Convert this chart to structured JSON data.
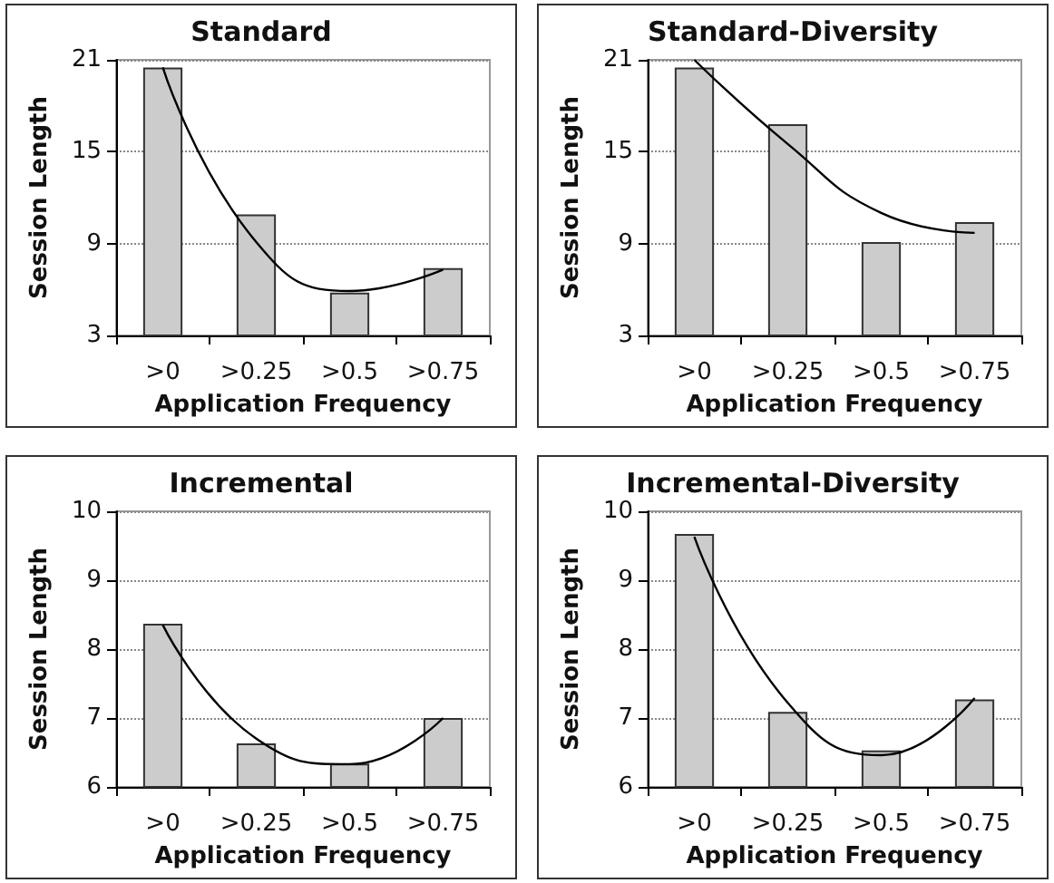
{
  "chart_data": [
    {
      "type": "bar",
      "title": "Standard",
      "xlabel": "Application Frequency",
      "ylabel": "Session Length",
      "categories": [
        ">0",
        ">0.25",
        ">0.5",
        ">0.75"
      ],
      "ylim": [
        3,
        21
      ],
      "yticks": [
        3,
        9,
        15,
        21
      ],
      "grid": "y",
      "marker": "none",
      "series": [
        {
          "color": "#cccccc",
          "values": [
            20.5,
            10.9,
            5.8,
            7.4
          ]
        },
        {
          "type": "line",
          "color": "#000000",
          "values": [
            20.5,
            9.1,
            5.9,
            7.3
          ]
        }
      ]
    },
    {
      "type": "bar",
      "title": "Standard-Diversity",
      "xlabel": "Application Frequency",
      "ylabel": "Session Length",
      "categories": [
        ">0",
        ">0.25",
        ">0.5",
        ">0.75"
      ],
      "ylim": [
        3,
        21
      ],
      "yticks": [
        3,
        9,
        15,
        21
      ],
      "grid": "y",
      "marker": "none",
      "series": [
        {
          "color": "#cccccc",
          "values": [
            20.5,
            16.8,
            9.1,
            10.4
          ]
        },
        {
          "type": "line",
          "color": "#000000",
          "values": [
            21,
            15.5,
            11.0,
            9.7
          ]
        }
      ]
    },
    {
      "type": "bar",
      "title": "Incremental",
      "xlabel": "Application Frequency",
      "ylabel": "Session Length",
      "categories": [
        ">0",
        ">0.25",
        ">0.5",
        ">0.75"
      ],
      "ylim": [
        6,
        10
      ],
      "yticks": [
        6,
        7,
        8,
        9,
        10
      ],
      "grid": "y",
      "marker": "none",
      "series": [
        {
          "color": "#cccccc",
          "values": [
            8.37,
            6.63,
            6.34,
            7.0
          ]
        },
        {
          "type": "line",
          "color": "#000000",
          "values": [
            8.35,
            6.7,
            6.33,
            7.0
          ]
        }
      ]
    },
    {
      "type": "bar",
      "title": "Incremental-Diversity",
      "xlabel": "Application Frequency",
      "ylabel": "Session Length",
      "categories": [
        ">0",
        ">0.25",
        ">0.5",
        ">0.75"
      ],
      "ylim": [
        6,
        10
      ],
      "yticks": [
        6,
        7,
        8,
        9,
        10
      ],
      "grid": "y",
      "marker": "none",
      "series": [
        {
          "color": "#cccccc",
          "values": [
            9.67,
            7.09,
            6.53,
            7.27
          ]
        },
        {
          "type": "line",
          "color": "#000000",
          "values": [
            9.63,
            7.22,
            6.46,
            7.29
          ]
        }
      ]
    }
  ]
}
